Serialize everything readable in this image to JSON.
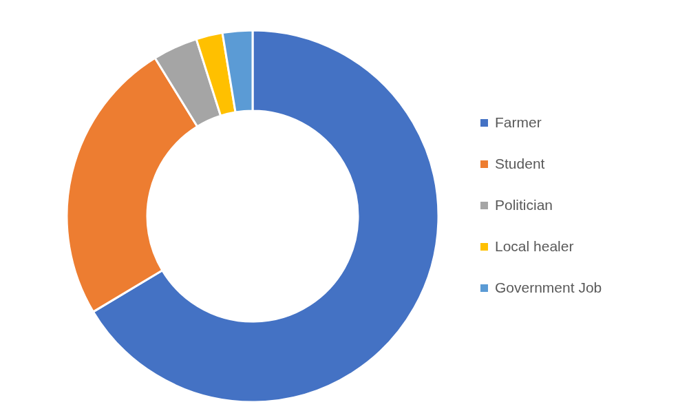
{
  "chart_data": {
    "type": "donut",
    "categories": [
      "Farmer",
      "Student",
      "Politician",
      "Local healer",
      "Government Job"
    ],
    "values": [
      66.4,
      24.8,
      3.9,
      2.3,
      2.6
    ],
    "colors": [
      "#4472c4",
      "#ed7d31",
      "#a5a5a5",
      "#ffc000",
      "#5b9bd5"
    ],
    "legend": "right"
  }
}
